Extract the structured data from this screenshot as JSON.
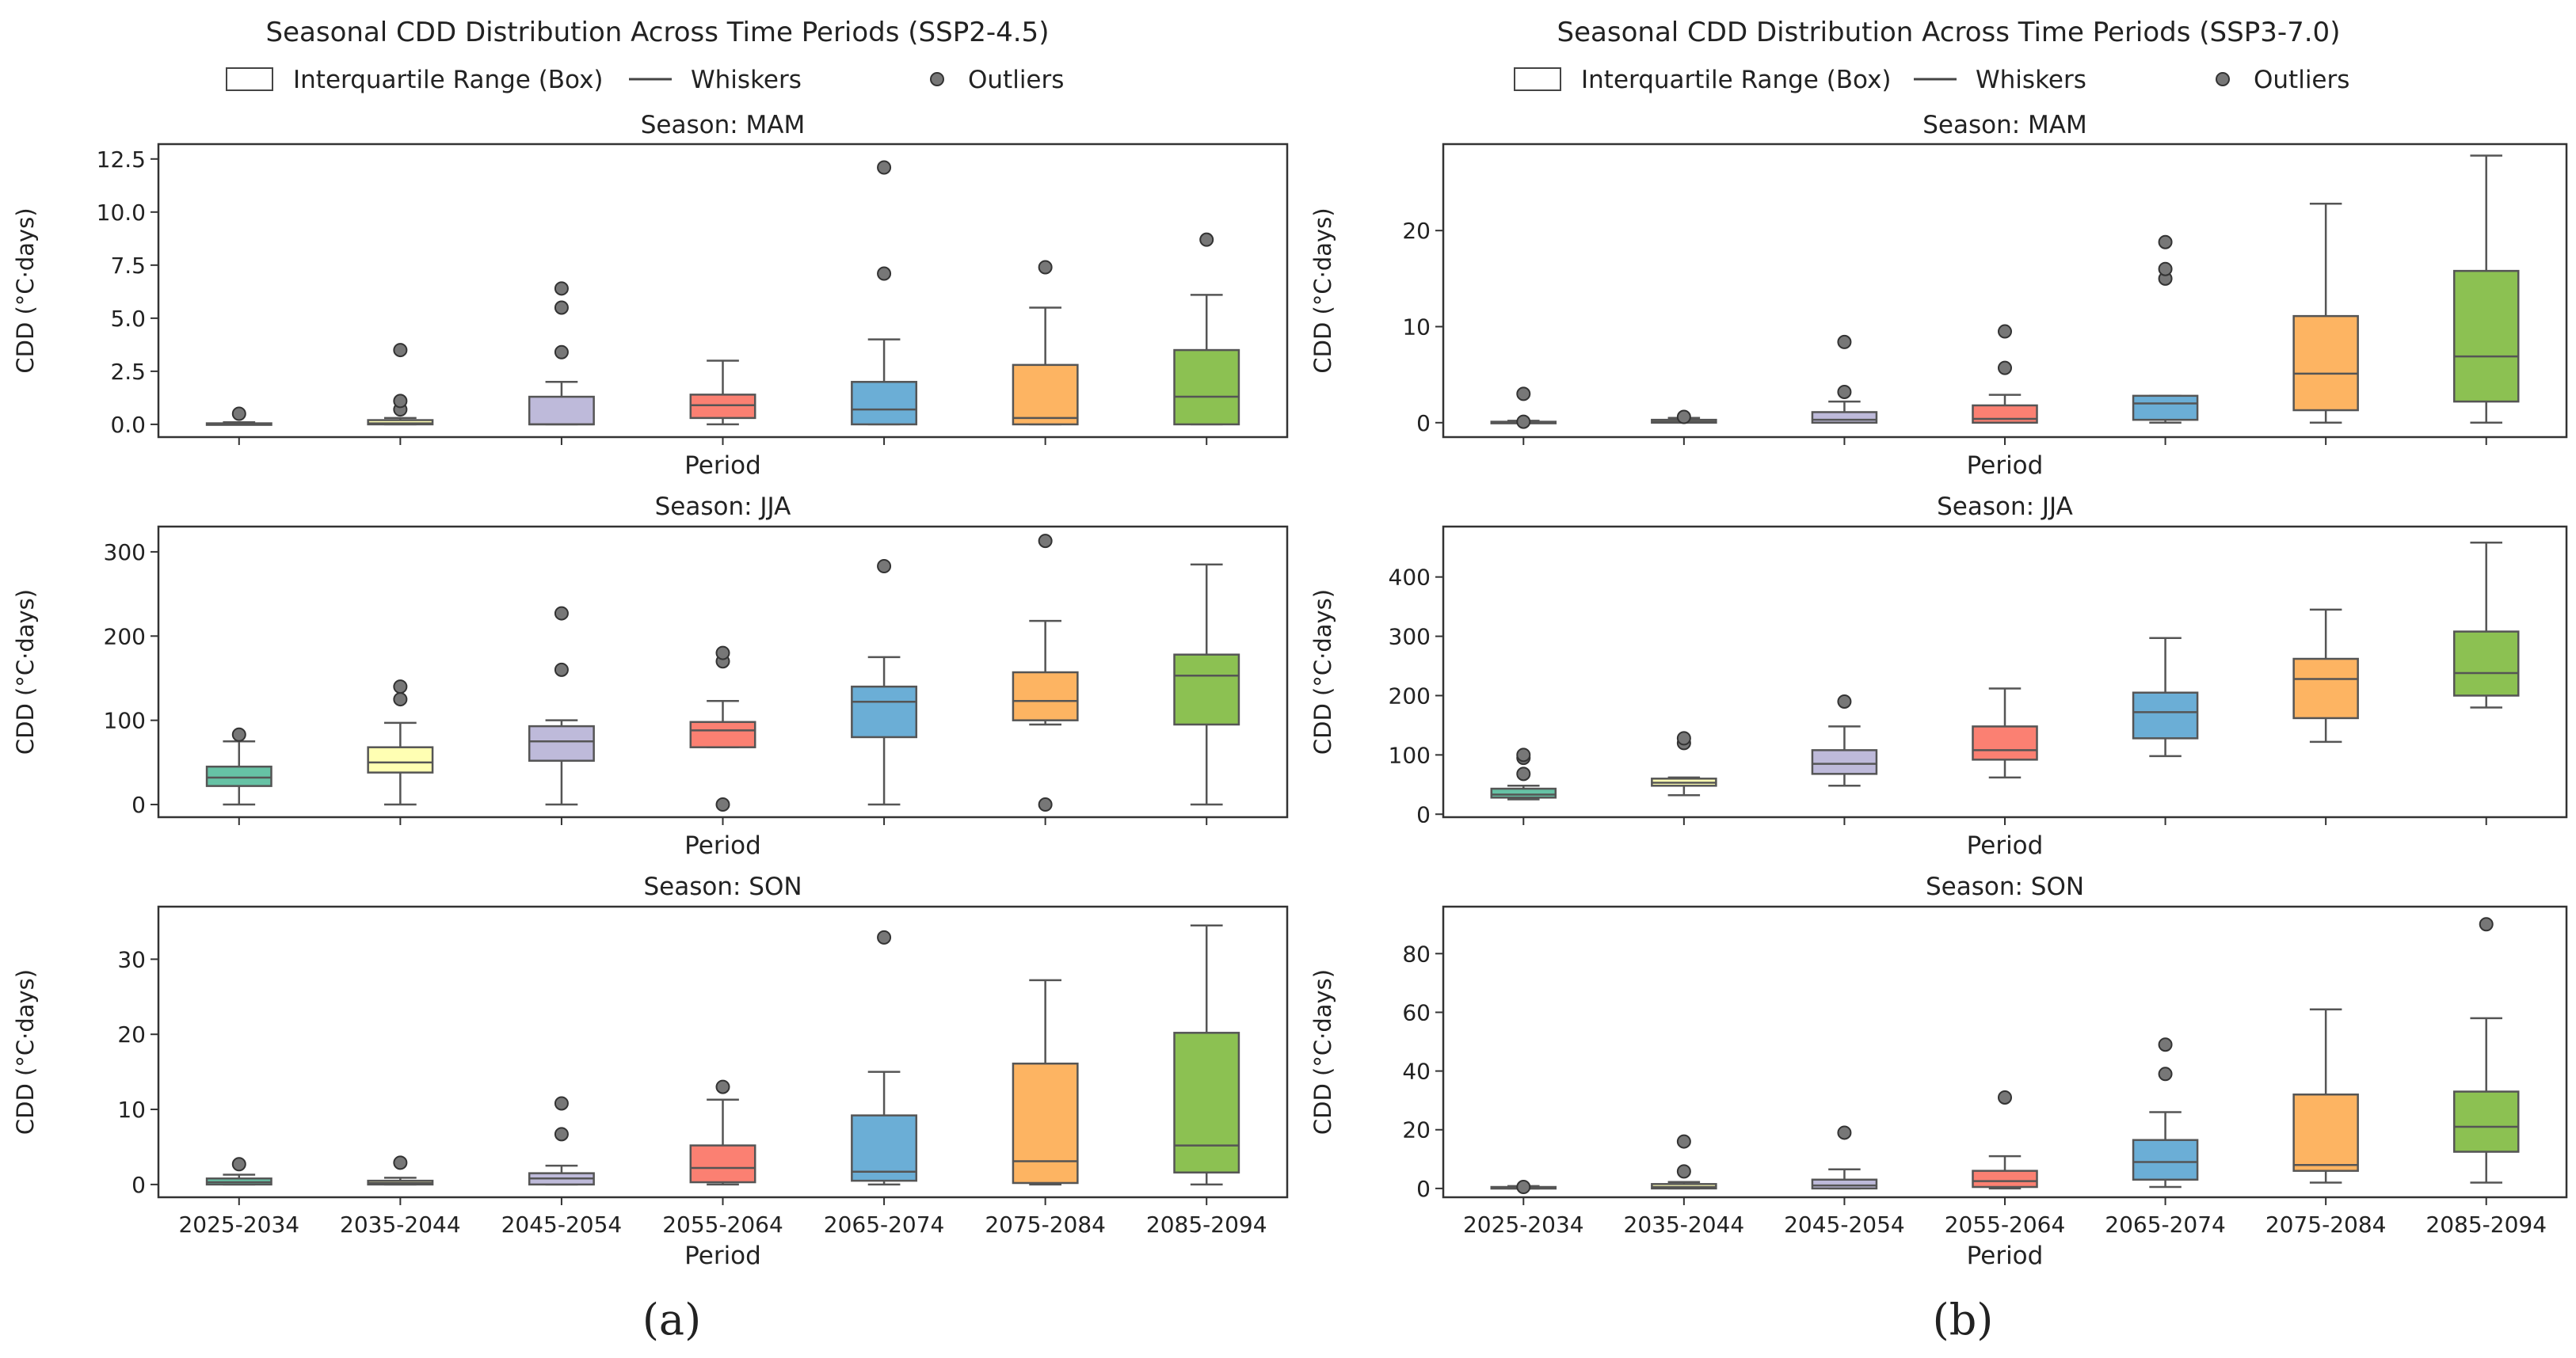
{
  "figure": {
    "xlabel": "Period",
    "ylabel": "CDD (°C·days)",
    "legend": {
      "box": "Interquartile Range (Box)",
      "whisker": "Whiskers",
      "outlier": "Outliers"
    },
    "colors": {
      "2025-2034": "#66c2a5",
      "2035-2044": "#ffffb3",
      "2045-2054": "#bebada",
      "2055-2064": "#fb8072",
      "2065-2074": "#6baed6",
      "2075-2084": "#fdb462",
      "2085-2094": "#8cc152"
    }
  },
  "chart_data": [
    {
      "type": "boxplot",
      "panel_label": "(a)",
      "title": "Seasonal CDD Distribution Across Time Periods (SSP2-4.5)",
      "categories": [
        "2025-2034",
        "2035-2044",
        "2045-2054",
        "2055-2064",
        "2065-2074",
        "2075-2084",
        "2085-2094"
      ],
      "seasons": [
        {
          "title": "Season: MAM",
          "ylim": [
            -0.6,
            13.2
          ],
          "ticks": [
            0,
            2.5,
            5,
            7.5,
            10,
            12.5
          ],
          "tick_labels": [
            "0.0",
            "2.5",
            "5.0",
            "7.5",
            "10.0",
            "12.5"
          ],
          "boxes": [
            {
              "min": 0,
              "q1": 0,
              "median": 0,
              "q3": 0.05,
              "max": 0.1,
              "outliers": [
                0.5
              ]
            },
            {
              "min": 0,
              "q1": 0,
              "median": 0.05,
              "q3": 0.2,
              "max": 0.3,
              "outliers": [
                0.7,
                1.1,
                3.5
              ]
            },
            {
              "min": 0,
              "q1": 0,
              "median": 0,
              "q3": 1.3,
              "max": 2.0,
              "outliers": [
                3.4,
                5.5,
                6.4
              ]
            },
            {
              "min": 0,
              "q1": 0.3,
              "median": 0.9,
              "q3": 1.4,
              "max": 3.0,
              "outliers": []
            },
            {
              "min": 0,
              "q1": 0,
              "median": 0.7,
              "q3": 2.0,
              "max": 4.0,
              "outliers": [
                7.1,
                12.1
              ]
            },
            {
              "min": 0,
              "q1": 0,
              "median": 0.3,
              "q3": 2.8,
              "max": 5.5,
              "outliers": [
                7.4
              ]
            },
            {
              "min": 0,
              "q1": 0,
              "median": 1.3,
              "q3": 3.5,
              "max": 6.1,
              "outliers": [
                8.7
              ]
            }
          ]
        },
        {
          "title": "Season: JJA",
          "ylim": [
            -15,
            330
          ],
          "ticks": [
            0,
            100,
            200,
            300
          ],
          "tick_labels": [
            "0",
            "100",
            "200",
            "300"
          ],
          "boxes": [
            {
              "min": 0,
              "q1": 22,
              "median": 32,
              "q3": 45,
              "max": 75,
              "outliers": [
                83
              ]
            },
            {
              "min": 0,
              "q1": 38,
              "median": 50,
              "q3": 68,
              "max": 97,
              "outliers": [
                125,
                140
              ]
            },
            {
              "min": 0,
              "q1": 52,
              "median": 75,
              "q3": 93,
              "max": 100,
              "outliers": [
                160,
                227
              ]
            },
            {
              "min": 68,
              "q1": 68,
              "median": 88,
              "q3": 98,
              "max": 123,
              "outliers": [
                0,
                170,
                180
              ]
            },
            {
              "min": 0,
              "q1": 80,
              "median": 122,
              "q3": 140,
              "max": 175,
              "outliers": [
                283
              ]
            },
            {
              "min": 95,
              "q1": 100,
              "median": 123,
              "q3": 157,
              "max": 218,
              "outliers": [
                0,
                313
              ]
            },
            {
              "min": 0,
              "q1": 95,
              "median": 153,
              "q3": 178,
              "max": 285,
              "outliers": []
            }
          ]
        },
        {
          "title": "Season: SON",
          "ylim": [
            -1.7,
            37
          ],
          "ticks": [
            0,
            10,
            20,
            30
          ],
          "tick_labels": [
            "0",
            "10",
            "20",
            "30"
          ],
          "boxes": [
            {
              "min": 0,
              "q1": 0,
              "median": 0.3,
              "q3": 0.8,
              "max": 1.3,
              "outliers": [
                2.7
              ]
            },
            {
              "min": 0,
              "q1": 0,
              "median": 0.2,
              "q3": 0.5,
              "max": 0.9,
              "outliers": [
                2.9
              ]
            },
            {
              "min": 0,
              "q1": 0,
              "median": 0.8,
              "q3": 1.5,
              "max": 2.5,
              "outliers": [
                6.7,
                10.8
              ]
            },
            {
              "min": 0,
              "q1": 0.3,
              "median": 2.2,
              "q3": 5.2,
              "max": 11.3,
              "outliers": [
                13.0
              ]
            },
            {
              "min": 0,
              "q1": 0.5,
              "median": 1.7,
              "q3": 9.2,
              "max": 15.0,
              "outliers": [
                32.9
              ]
            },
            {
              "min": 0,
              "q1": 0.2,
              "median": 3.1,
              "q3": 16.1,
              "max": 27.2,
              "outliers": []
            },
            {
              "min": 0,
              "q1": 1.6,
              "median": 5.2,
              "q3": 20.2,
              "max": 34.5,
              "outliers": []
            }
          ]
        }
      ]
    },
    {
      "type": "boxplot",
      "panel_label": "(b)",
      "title": "Seasonal CDD Distribution Across Time Periods (SSP3-7.0)",
      "categories": [
        "2025-2034",
        "2035-2044",
        "2045-2054",
        "2055-2064",
        "2065-2074",
        "2075-2084",
        "2085-2094"
      ],
      "seasons": [
        {
          "title": "Season: MAM",
          "ylim": [
            -1.5,
            29
          ],
          "ticks": [
            0,
            10,
            20
          ],
          "tick_labels": [
            "0",
            "10",
            "20"
          ],
          "boxes": [
            {
              "min": 0,
              "q1": 0,
              "median": 0,
              "q3": 0.1,
              "max": 0.2,
              "outliers": [
                0.1,
                3.0
              ]
            },
            {
              "min": 0,
              "q1": 0,
              "median": 0.1,
              "q3": 0.3,
              "max": 0.5,
              "outliers": [
                0.6
              ]
            },
            {
              "min": 0,
              "q1": 0,
              "median": 0.3,
              "q3": 1.1,
              "max": 2.2,
              "outliers": [
                3.2,
                8.4
              ]
            },
            {
              "min": 0,
              "q1": 0,
              "median": 0.4,
              "q3": 1.8,
              "max": 2.9,
              "outliers": [
                5.7,
                9.5
              ]
            },
            {
              "min": 0,
              "q1": 0.3,
              "median": 2.0,
              "q3": 2.8,
              "max": 2.8,
              "outliers": [
                15.0,
                16.0,
                18.8
              ]
            },
            {
              "min": 0,
              "q1": 1.3,
              "median": 5.1,
              "q3": 11.1,
              "max": 22.8,
              "outliers": []
            },
            {
              "min": 0,
              "q1": 2.2,
              "median": 6.9,
              "q3": 15.8,
              "max": 27.8,
              "outliers": []
            }
          ]
        },
        {
          "title": "Season: JJA",
          "ylim": [
            -5,
            485
          ],
          "ticks": [
            0,
            100,
            200,
            300,
            400
          ],
          "tick_labels": [
            "0",
            "100",
            "200",
            "300",
            "400"
          ],
          "boxes": [
            {
              "min": 25,
              "q1": 28,
              "median": 33,
              "q3": 43,
              "max": 48,
              "outliers": [
                68,
                95,
                100
              ]
            },
            {
              "min": 32,
              "q1": 48,
              "median": 53,
              "q3": 60,
              "max": 62,
              "outliers": [
                120,
                128
              ]
            },
            {
              "min": 48,
              "q1": 68,
              "median": 85,
              "q3": 108,
              "max": 148,
              "outliers": [
                190
              ]
            },
            {
              "min": 62,
              "q1": 92,
              "median": 108,
              "q3": 148,
              "max": 212,
              "outliers": []
            },
            {
              "min": 98,
              "q1": 128,
              "median": 172,
              "q3": 205,
              "max": 297,
              "outliers": []
            },
            {
              "min": 122,
              "q1": 162,
              "median": 228,
              "q3": 262,
              "max": 345,
              "outliers": []
            },
            {
              "min": 180,
              "q1": 200,
              "median": 238,
              "q3": 308,
              "max": 458,
              "outliers": []
            }
          ]
        },
        {
          "title": "Season: SON",
          "ylim": [
            -3,
            96
          ],
          "ticks": [
            0,
            20,
            40,
            60,
            80
          ],
          "tick_labels": [
            "0",
            "20",
            "40",
            "60",
            "80"
          ],
          "boxes": [
            {
              "min": 0,
              "q1": 0,
              "median": 0.2,
              "q3": 0.5,
              "max": 0.8,
              "outliers": [
                0.5
              ]
            },
            {
              "min": 0,
              "q1": 0,
              "median": 0.5,
              "q3": 1.5,
              "max": 2.2,
              "outliers": [
                5.8,
                16.0
              ]
            },
            {
              "min": 0,
              "q1": 0,
              "median": 1.0,
              "q3": 3.0,
              "max": 6.5,
              "outliers": [
                19.0
              ]
            },
            {
              "min": 0,
              "q1": 0.5,
              "median": 2.5,
              "q3": 6.0,
              "max": 11.0,
              "outliers": [
                31.0
              ]
            },
            {
              "min": 0.5,
              "q1": 3.0,
              "median": 9.0,
              "q3": 16.5,
              "max": 26.0,
              "outliers": [
                39.0,
                49.0
              ]
            },
            {
              "min": 2.0,
              "q1": 6.0,
              "median": 8.0,
              "q3": 32.0,
              "max": 61.0,
              "outliers": []
            },
            {
              "min": 2.0,
              "q1": 12.5,
              "median": 21.0,
              "q3": 33.0,
              "max": 58.0,
              "outliers": [
                90.0
              ]
            }
          ]
        }
      ]
    }
  ]
}
